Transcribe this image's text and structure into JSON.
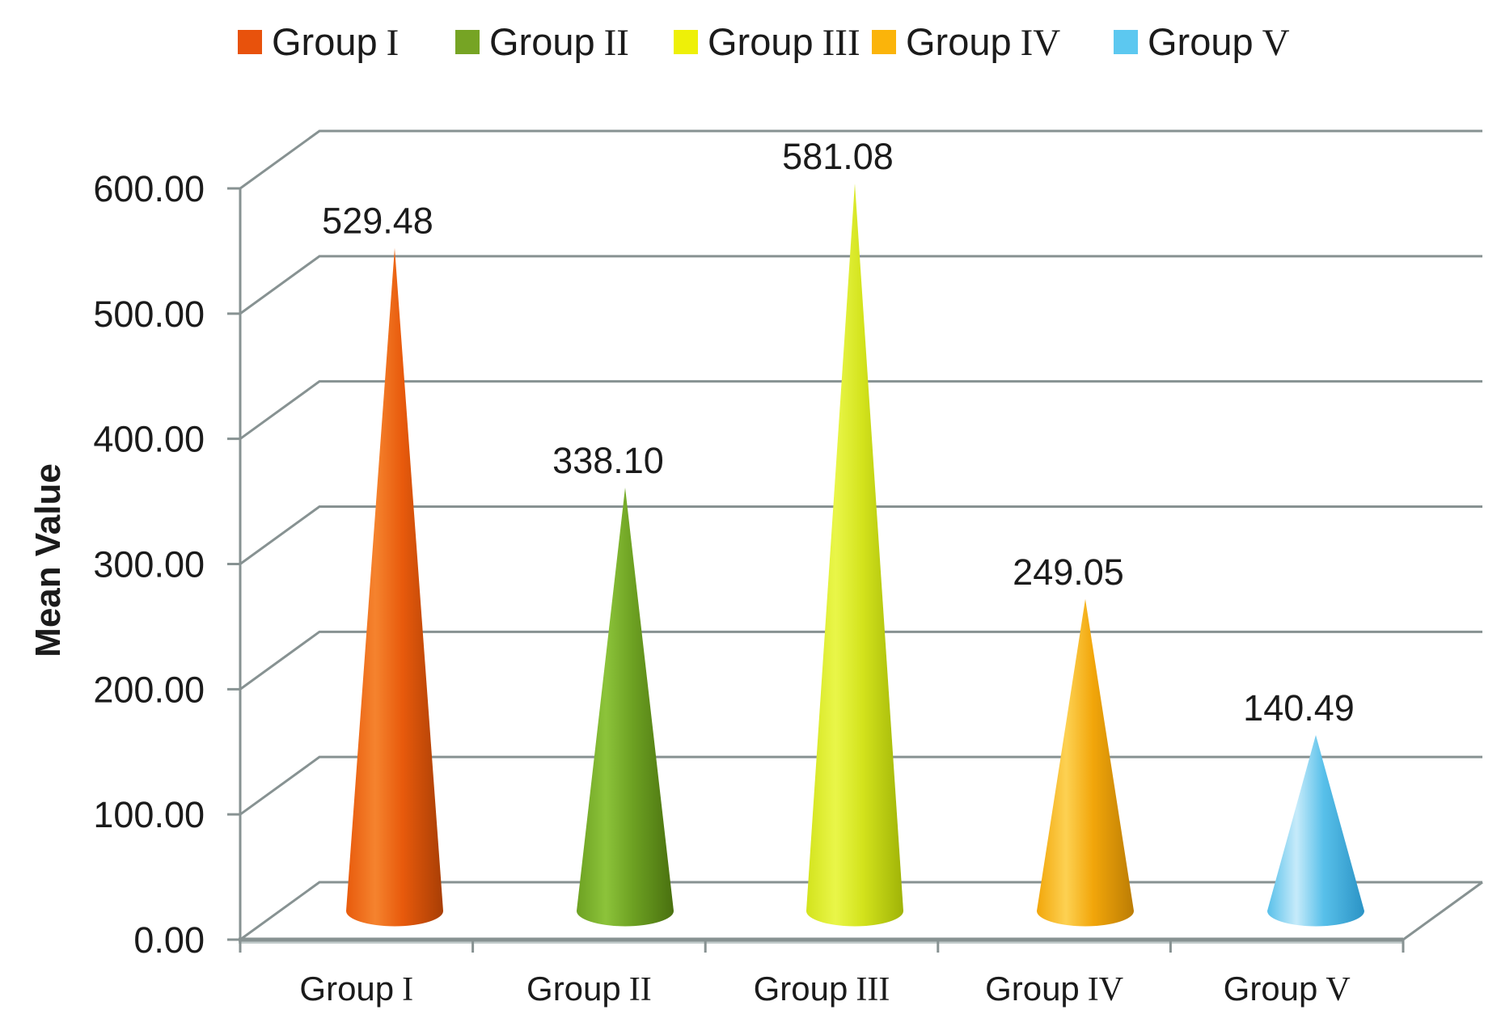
{
  "page": {
    "background": "#ffffff"
  },
  "chart_data": {
    "type": "bar",
    "subtype": "3d-cone",
    "title": "",
    "xlabel": "",
    "ylabel": "Mean Value",
    "categories": [
      "Group I",
      "Group II",
      "Group III",
      "Group IV",
      "Group V"
    ],
    "values": [
      529.48,
      338.1,
      581.08,
      249.05,
      140.49
    ],
    "value_labels": [
      "529.48",
      "338.10",
      "581.08",
      "249.05",
      "140.49"
    ],
    "ylim": [
      0,
      600
    ],
    "yticks": [
      0,
      100,
      200,
      300,
      400,
      500,
      600
    ],
    "ytick_labels": [
      "0.00",
      "100.00",
      "200.00",
      "300.00",
      "400.00",
      "500.00",
      "600.00"
    ],
    "grid": true,
    "legend_position": "top",
    "series_colors": [
      {
        "name": "Group I",
        "legend": "#e8520c",
        "light": "#f5832e",
        "main": "#e85a0c",
        "dark": "#a83e05"
      },
      {
        "name": "Group II",
        "legend": "#76a424",
        "light": "#8cc33a",
        "main": "#6da122",
        "dark": "#49700f"
      },
      {
        "name": "Group III",
        "legend": "#eef008",
        "light": "#e9f649",
        "main": "#d3e31c",
        "dark": "#9fb307"
      },
      {
        "name": "Group IV",
        "legend": "#fbb40a",
        "light": "#fdd152",
        "main": "#f2a60a",
        "dark": "#bb7c04"
      },
      {
        "name": "Group V",
        "legend": "#5cc8f0",
        "light": "#c6ebfa",
        "main": "#58c0ea",
        "dark": "#2b93c5"
      }
    ],
    "axis_color": "#879292",
    "text_color": "#1b1b1b"
  }
}
